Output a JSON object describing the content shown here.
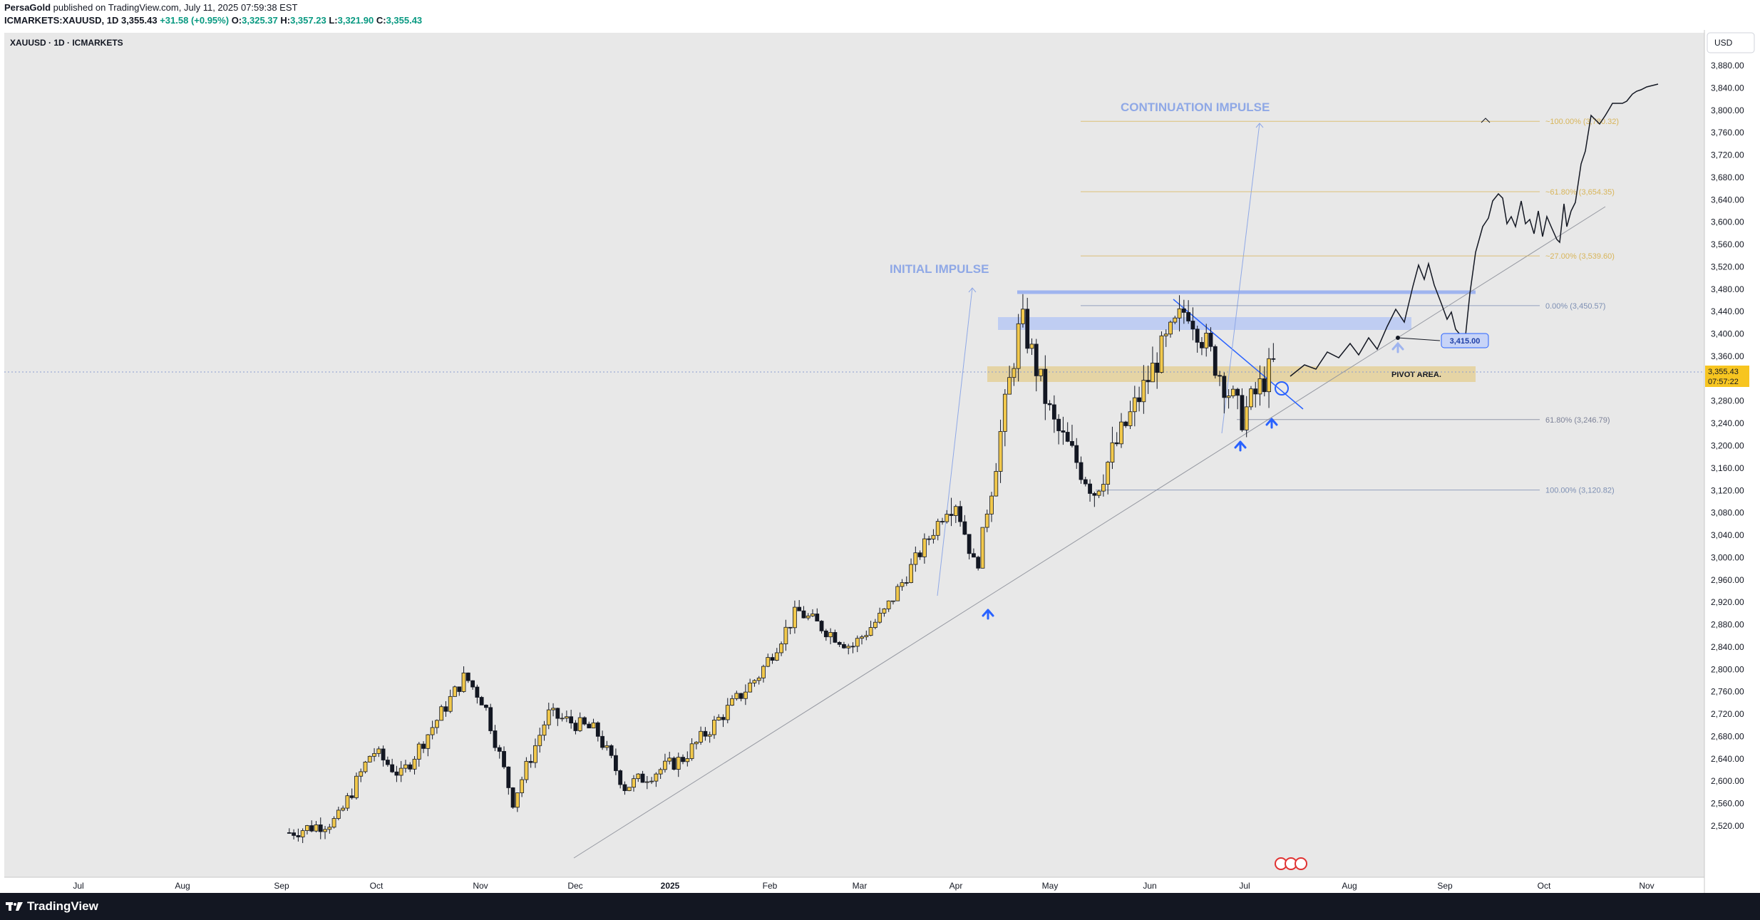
{
  "header": {
    "publisher": "PersaGold",
    "published_text": " published on TradingView.com, July 11, 2025 07:59:38 EST",
    "symbol_line": "ICMARKETS:XAUUSD, 1D",
    "last": "3,355.43",
    "change": "+31.58 (+0.95%)",
    "open_label": "O:",
    "open": "3,325.37",
    "high_label": "H:",
    "high": "3,357.23",
    "low_label": "L:",
    "low": "3,321.90",
    "close_label": "C:",
    "close": "3,355.43"
  },
  "chart_title": "XAUUSD · 1D · ICMARKETS",
  "currency": "USD",
  "brand": "TradingView",
  "colors": {
    "up_candle": "#f2c94c",
    "down_candle": "#131722",
    "fib_top": "#d8b55a",
    "fib_bottom": "#7d8fb3",
    "impulse_text": "#8fa8e6",
    "resistance_zone": "#b2c4f5",
    "pivot_zone": "#e4cd8f",
    "arrow_blue": "#2962ff",
    "price_tag": "#f7c520"
  },
  "chart_data": {
    "type": "candlestick",
    "y_axis_range": [
      2500,
      3920
    ],
    "y_ticks": [
      "3,880.00",
      "3,840.00",
      "3,800.00",
      "3,760.00",
      "3,720.00",
      "3,680.00",
      "3,640.00",
      "3,600.00",
      "3,560.00",
      "3,520.00",
      "3,480.00",
      "3,440.00",
      "3,400.00",
      "3,360.00",
      "3,320.00",
      "3,280.00",
      "3,240.00",
      "3,200.00",
      "3,160.00",
      "3,120.00",
      "3,080.00",
      "3,040.00",
      "3,000.00",
      "2,960.00",
      "2,920.00",
      "2,880.00",
      "2,840.00",
      "2,800.00",
      "2,760.00",
      "2,720.00",
      "2,680.00",
      "2,640.00",
      "2,600.00",
      "2,560.00",
      "2,520.00"
    ],
    "x_ticks": [
      "Jul",
      "Aug",
      "Sep",
      "Oct",
      "Nov",
      "Dec",
      "2025",
      "Feb",
      "Mar",
      "Apr",
      "May",
      "Jun",
      "Jul",
      "Aug",
      "Sep",
      "Oct",
      "Nov"
    ],
    "price_path_approx": [
      [
        "2024-09-05",
        2508
      ],
      [
        "2024-09-20",
        2530
      ],
      [
        "2024-10-01",
        2655
      ],
      [
        "2024-10-10",
        2610
      ],
      [
        "2024-10-30",
        2788
      ],
      [
        "2024-11-05",
        2740
      ],
      [
        "2024-11-14",
        2565
      ],
      [
        "2024-11-25",
        2720
      ],
      [
        "2024-12-10",
        2690
      ],
      [
        "2024-12-19",
        2590
      ],
      [
        "2025-01-06",
        2640
      ],
      [
        "2025-01-30",
        2790
      ],
      [
        "2025-02-11",
        2905
      ],
      [
        "2025-02-28",
        2840
      ],
      [
        "2025-03-10",
        2900
      ],
      [
        "2025-04-01",
        3110
      ],
      [
        "2025-04-08",
        2975
      ],
      [
        "2025-04-22",
        3430
      ],
      [
        "2025-05-02",
        3240
      ],
      [
        "2025-05-15",
        3120
      ],
      [
        "2025-06-05",
        3370
      ],
      [
        "2025-06-13",
        3450
      ],
      [
        "2025-06-30",
        3250
      ],
      [
        "2025-07-11",
        3355
      ]
    ],
    "annotations": {
      "initial_impulse": "INITIAL IMPULSE",
      "continuation_impulse": "CONTINUATION IMPULSE",
      "pivot_area": "PIVOT AREA.",
      "target_label": "3,415.00",
      "fib_levels": [
        {
          "label": "~100.00% (3,780.32)",
          "value": 3780.32
        },
        {
          "label": "~61.80% (3,654.35)",
          "value": 3654.35
        },
        {
          "label": "~27.00% (3,539.60)",
          "value": 3539.6
        },
        {
          "label": "0.00% (3,450.57)",
          "value": 3450.57
        },
        {
          "label": "61.80% (3,246.79)",
          "value": 3246.79
        },
        {
          "label": "100.00% (3,120.82)",
          "value": 3120.82
        }
      ],
      "current_price": "3,355.43",
      "countdown": "07:57:22"
    }
  }
}
